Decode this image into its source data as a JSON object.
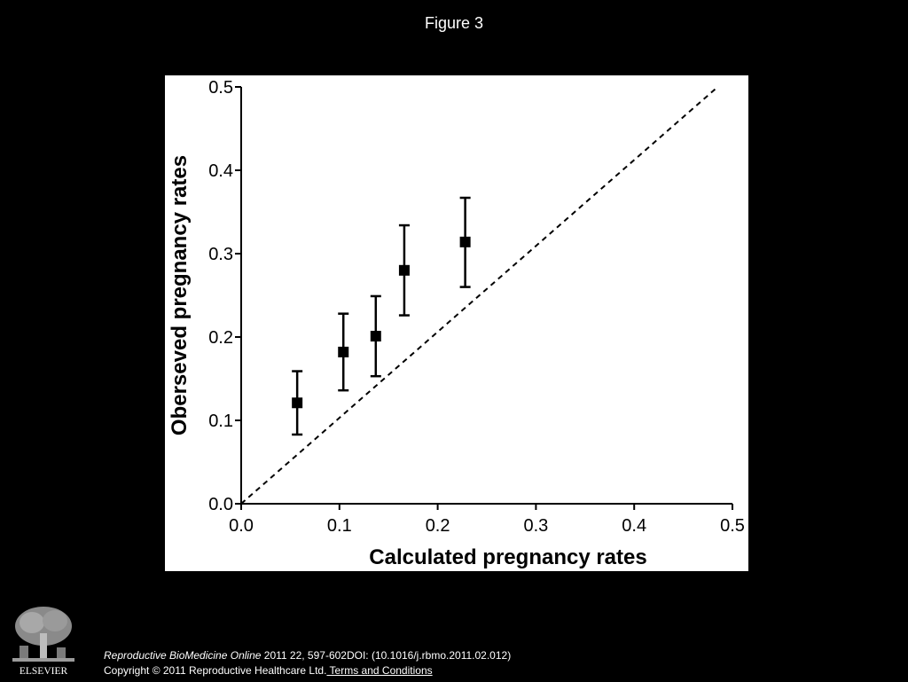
{
  "figure_title": "Figure 3",
  "chart_data": {
    "type": "scatter",
    "title": "",
    "xlabel": "Calculated pregnancy rates",
    "ylabel": "Oberseved pregnancy rates",
    "xlim": [
      0.0,
      0.5
    ],
    "ylim": [
      0.0,
      0.5
    ],
    "x_ticks": [
      "0.0",
      "0.1",
      "0.2",
      "0.3",
      "0.4",
      "0.5"
    ],
    "y_ticks": [
      "0.0",
      "0.1",
      "0.2",
      "0.3",
      "0.4",
      "0.5"
    ],
    "grid": false,
    "legend": "none",
    "series": [
      {
        "marker": "square",
        "color": "#000000",
        "points": [
          {
            "x": 0.057,
            "y": 0.121,
            "err_low": 0.083,
            "err_high": 0.159
          },
          {
            "x": 0.104,
            "y": 0.182,
            "err_low": 0.136,
            "err_high": 0.228
          },
          {
            "x": 0.137,
            "y": 0.201,
            "err_low": 0.153,
            "err_high": 0.249
          },
          {
            "x": 0.166,
            "y": 0.28,
            "err_low": 0.226,
            "err_high": 0.334
          },
          {
            "x": 0.228,
            "y": 0.314,
            "err_low": 0.26,
            "err_high": 0.367
          }
        ]
      }
    ],
    "reference_line": {
      "style": "dashed",
      "from": [
        0.0,
        0.0
      ],
      "to": [
        0.485,
        0.5
      ]
    }
  },
  "footer": {
    "journal": "Reproductive BioMedicine Online",
    "citation": " 2011 22, 597-602DOI: (10.1016/j.rbmo.2011.02.012)",
    "copyright": "Copyright © 2011 Reproductive Healthcare Ltd.",
    "terms_link": " Terms and Conditions",
    "logo_text": "ELSEVIER"
  }
}
